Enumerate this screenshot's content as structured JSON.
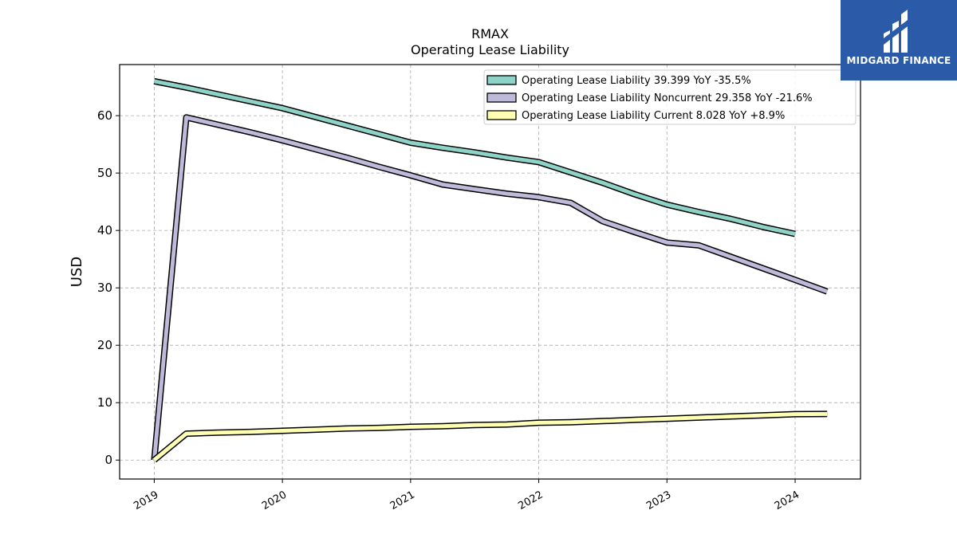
{
  "logo": {
    "text": "MIDGARD FINANCE",
    "background": "#2b5aa8"
  },
  "chart_data": {
    "type": "line",
    "title": "RMAX",
    "subtitle": "Operating Lease Liability",
    "ylabel": "USD",
    "xlabel": "",
    "xlim": [
      2018.73,
      2024.51
    ],
    "ylim": [
      -3.3,
      68.9
    ],
    "xticks": [
      2019,
      2020,
      2021,
      2022,
      2023,
      2024
    ],
    "yticks": [
      0,
      10,
      20,
      30,
      40,
      50,
      60
    ],
    "grid": true,
    "legend_position": "top-right",
    "series": [
      {
        "name": "Operating Lease Liability  39.399 YoY -35.5%",
        "color": "#8dd3c7",
        "x": [
          2019.0,
          2019.25,
          2019.5,
          2019.75,
          2020.0,
          2020.25,
          2020.5,
          2020.75,
          2021.0,
          2021.25,
          2021.5,
          2021.75,
          2022.0,
          2022.25,
          2022.5,
          2022.75,
          2023.0,
          2023.25,
          2023.5,
          2023.75,
          2024.0
        ],
        "y": [
          66.0,
          64.9,
          63.7,
          62.5,
          61.3,
          59.8,
          58.3,
          56.8,
          55.3,
          54.4,
          53.6,
          52.7,
          51.9,
          50.1,
          48.3,
          46.3,
          44.5,
          43.2,
          42.0,
          40.6,
          39.4
        ]
      },
      {
        "name": "Operating Lease Liability Noncurrent  29.358 YoY -21.6%",
        "color": "#bebada",
        "x": [
          2019.0,
          2019.25,
          2019.5,
          2019.75,
          2020.0,
          2020.25,
          2020.5,
          2020.75,
          2021.0,
          2021.25,
          2021.5,
          2021.75,
          2022.0,
          2022.25,
          2022.5,
          2022.75,
          2023.0,
          2023.25,
          2023.5,
          2023.75,
          2024.0,
          2024.25
        ],
        "y": [
          0.0,
          59.7,
          58.4,
          57.1,
          55.7,
          54.2,
          52.7,
          51.1,
          49.6,
          48.0,
          47.2,
          46.4,
          45.8,
          44.8,
          41.6,
          39.7,
          37.9,
          37.4,
          35.4,
          33.4,
          31.4,
          29.358
        ]
      },
      {
        "name": "Operating Lease Liability Current  8.028 YoY +8.9%",
        "color": "#ffffb3",
        "x": [
          2019.0,
          2019.25,
          2019.5,
          2019.75,
          2020.0,
          2020.25,
          2020.5,
          2020.75,
          2021.0,
          2021.25,
          2021.5,
          2021.75,
          2022.0,
          2022.25,
          2022.5,
          2022.75,
          2023.0,
          2023.25,
          2023.5,
          2023.75,
          2024.0,
          2024.25
        ],
        "y": [
          0.0,
          4.6,
          4.8,
          4.9,
          5.1,
          5.3,
          5.5,
          5.6,
          5.8,
          5.9,
          6.1,
          6.2,
          6.5,
          6.6,
          6.8,
          7.0,
          7.2,
          7.4,
          7.6,
          7.8,
          8.0,
          8.028
        ]
      }
    ]
  }
}
